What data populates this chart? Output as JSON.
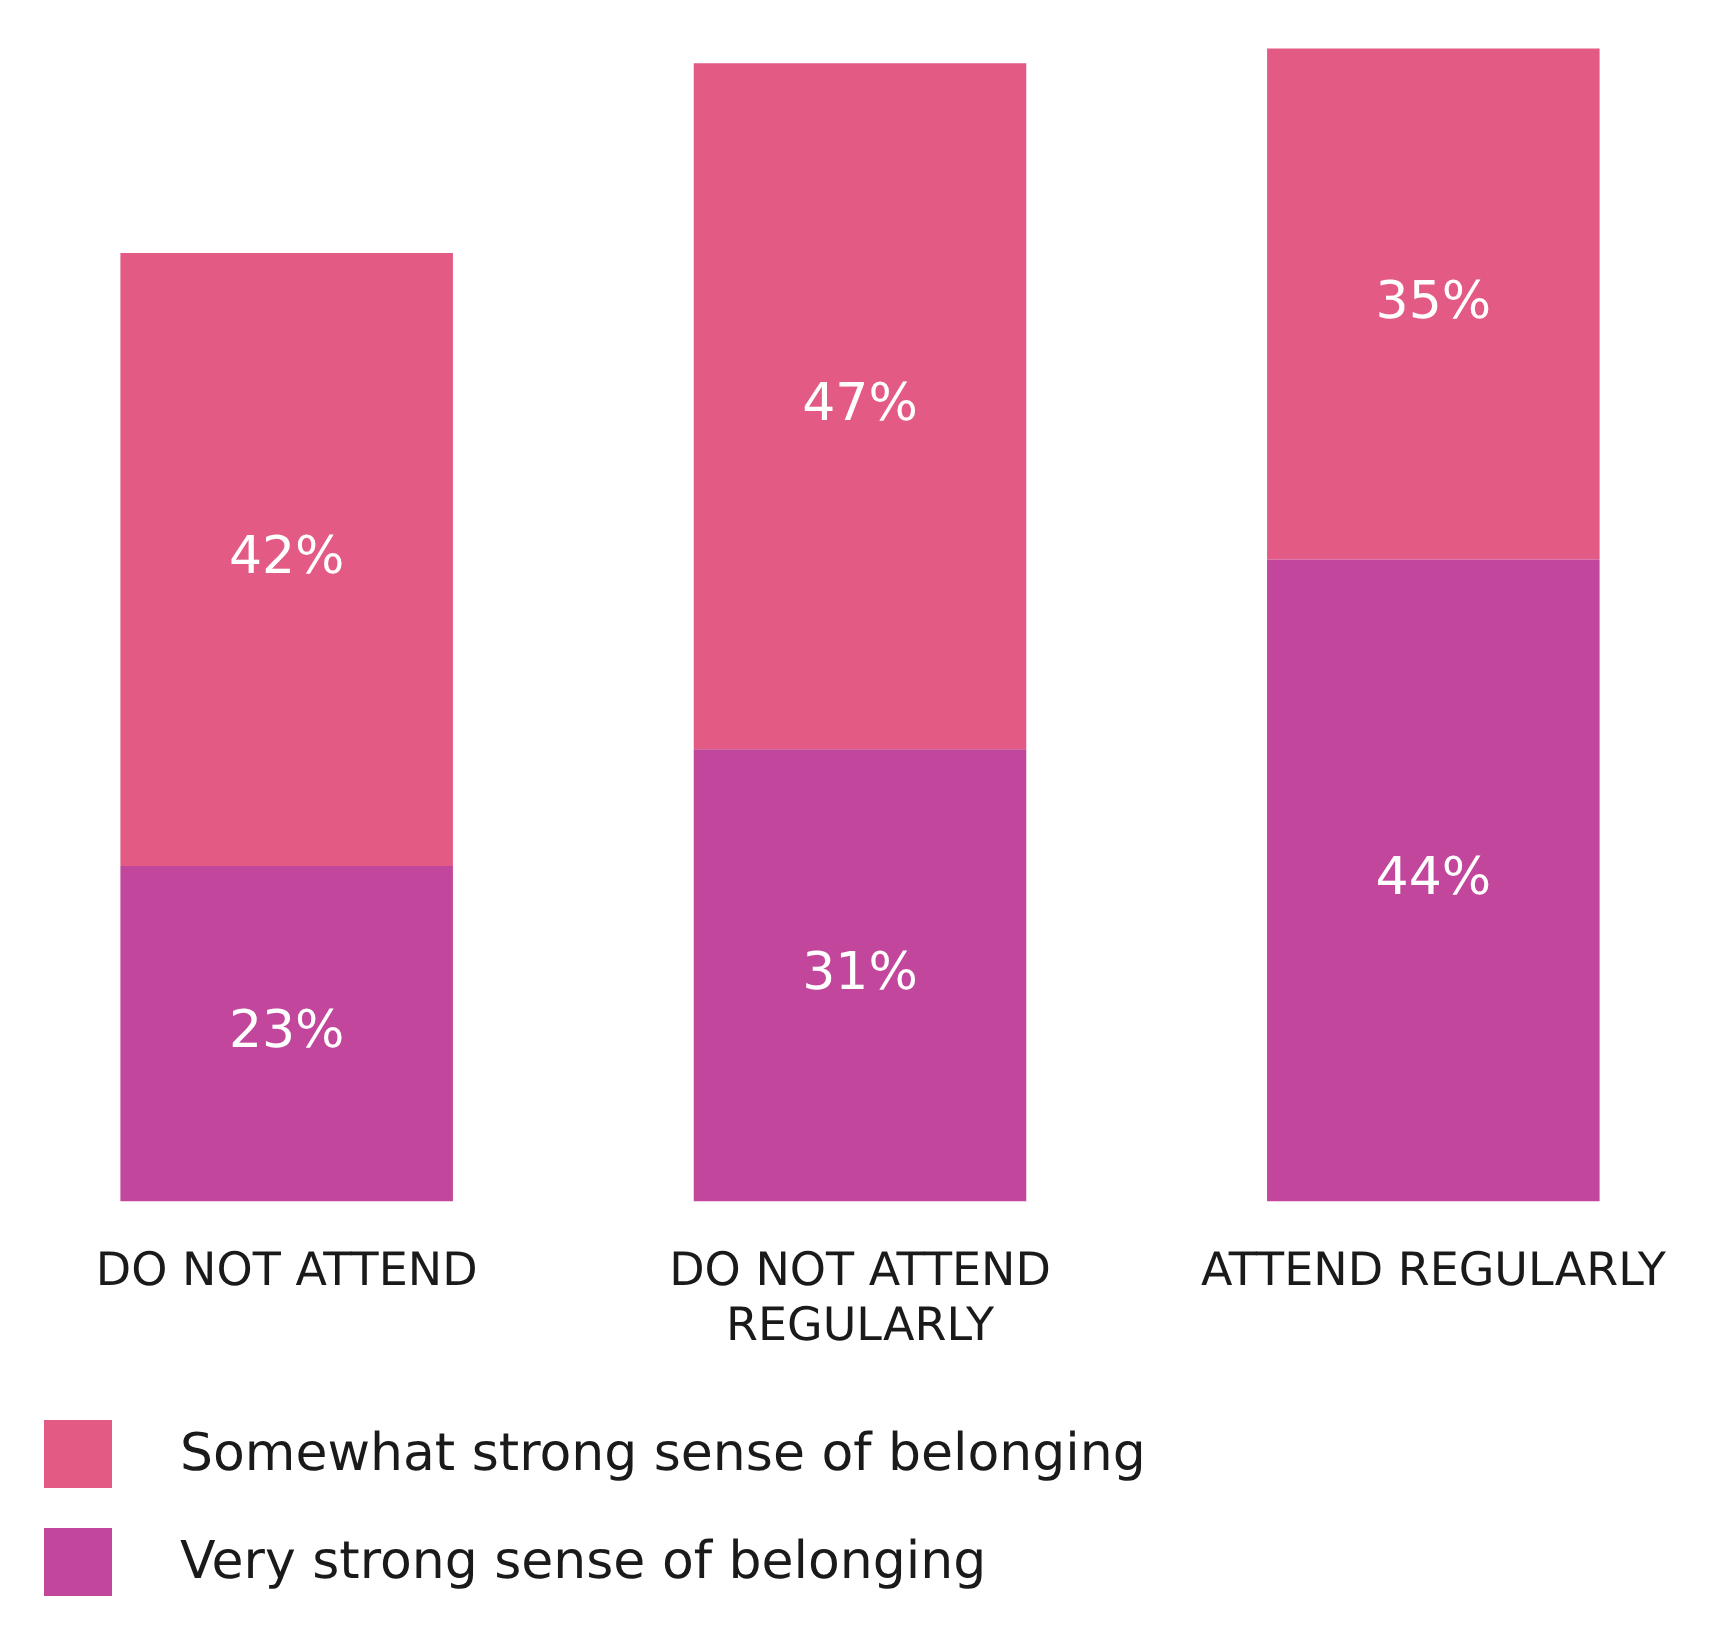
{
  "chart_data": {
    "type": "bar",
    "stacked": true,
    "categories": [
      "DO NOT ATTEND",
      "DO NOT ATTEND REGULARLY",
      "ATTEND REGULARLY"
    ],
    "series": [
      {
        "name": "Very strong sense of belonging",
        "color": "#c2479c",
        "values": [
          23,
          31,
          44
        ],
        "value_labels": [
          "23%",
          "31%",
          "44%"
        ]
      },
      {
        "name": "Somewhat strong sense of belonging",
        "color": "#e35a84",
        "values": [
          42,
          47,
          35
        ],
        "value_labels": [
          "42%",
          "47%",
          "35%"
        ]
      }
    ],
    "legend": "bottom left",
    "grid": false
  }
}
